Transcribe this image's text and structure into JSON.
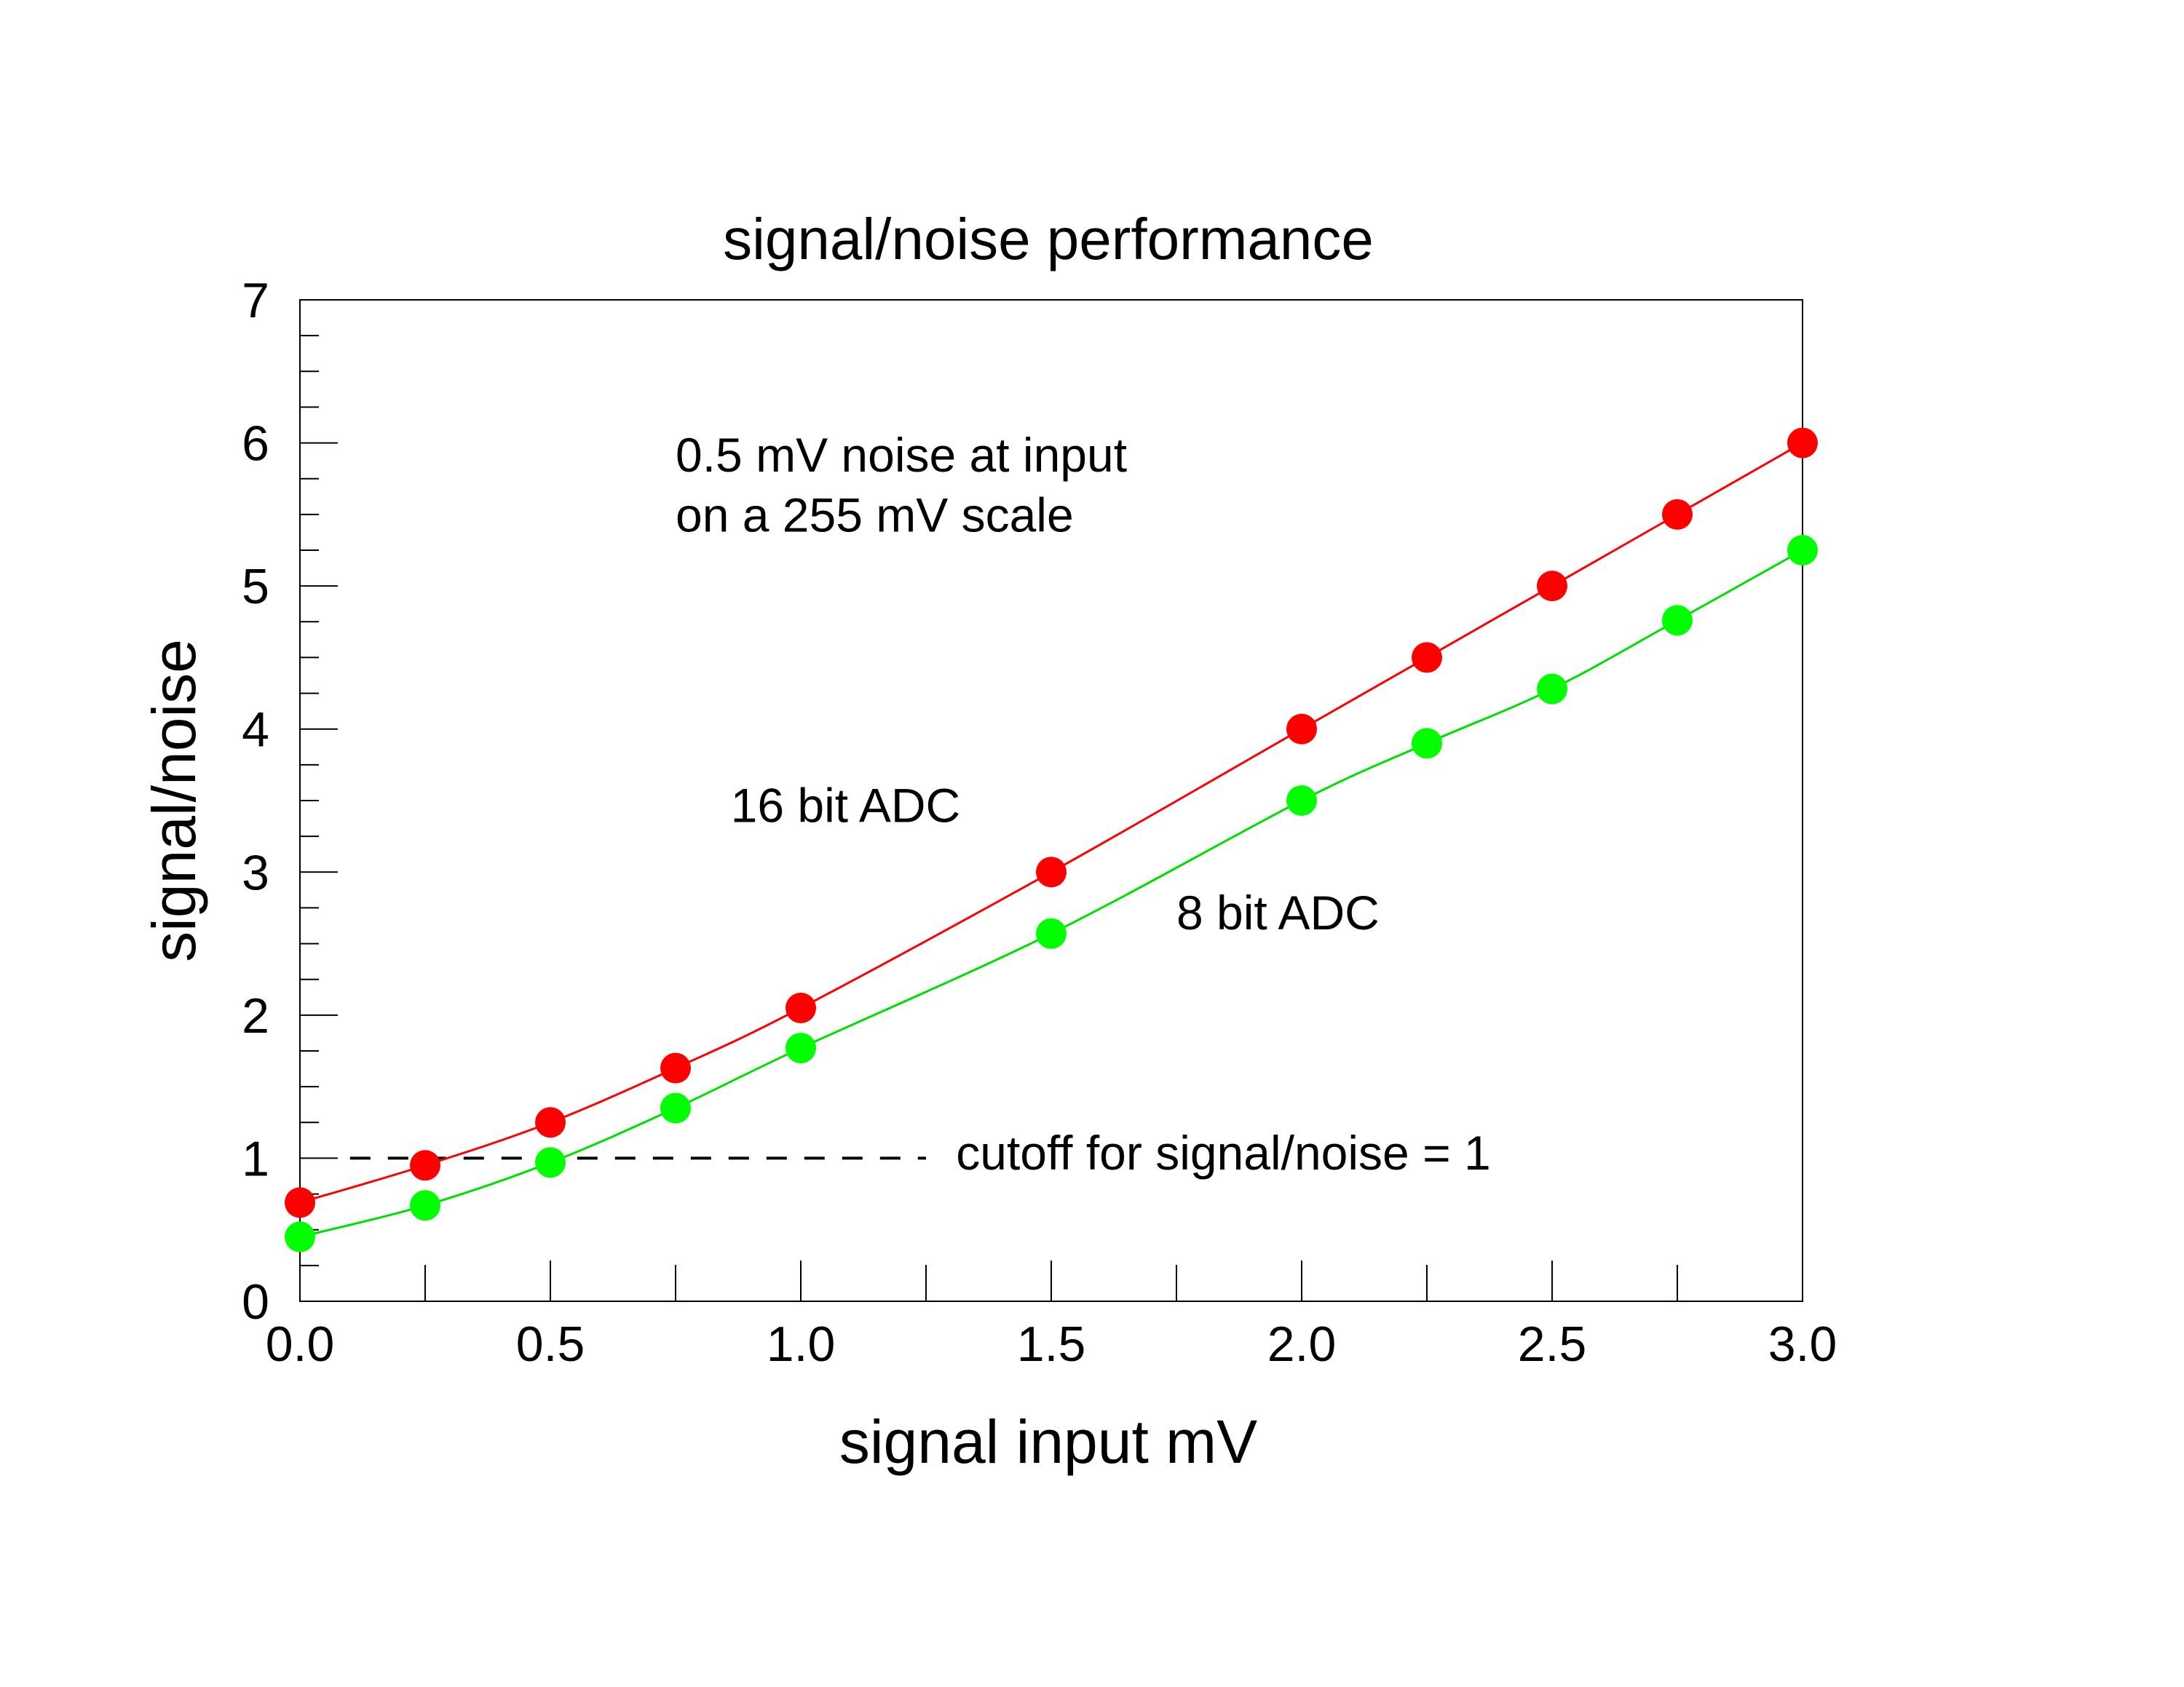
{
  "chart_data": {
    "type": "line",
    "title": "signal/noise performance",
    "xlabel": "signal input mV",
    "ylabel": "signal/noise",
    "xlim": [
      0,
      3
    ],
    "ylim": [
      0,
      7
    ],
    "x_ticks": [
      0,
      0.5,
      1,
      1.5,
      2,
      2.5,
      3
    ],
    "x_tick_labels": [
      "0.0",
      "0.5",
      "1.0",
      "1.5",
      "2.0",
      "2.5",
      "3.0"
    ],
    "y_ticks": [
      0,
      1,
      2,
      3,
      4,
      5,
      6,
      7
    ],
    "y_tick_labels": [
      "0",
      "1",
      "2",
      "3",
      "4",
      "5",
      "6",
      "7"
    ],
    "grid": false,
    "legend": "none",
    "x": [
      0,
      0.25,
      0.5,
      0.75,
      1.0,
      1.5,
      2.0,
      2.25,
      2.5,
      2.75,
      3.0
    ],
    "series": [
      {
        "name": "16 bit ADC",
        "color": "#ff0000",
        "marker_color": "#ff0000",
        "values": [
          0.69,
          0.95,
          1.25,
          1.63,
          2.05,
          3.0,
          4.0,
          4.5,
          5.0,
          5.5,
          6.0
        ]
      },
      {
        "name": "8 bit ADC",
        "color": "#00e000",
        "marker_color": "#00ff00",
        "values": [
          0.45,
          0.67,
          0.97,
          1.35,
          1.77,
          2.57,
          3.5,
          3.9,
          4.28,
          4.76,
          5.25
        ]
      }
    ],
    "reference_line": {
      "y": 1,
      "x_range": [
        0.1,
        1.25
      ],
      "style": "dashed",
      "color": "#000000"
    },
    "annotations": [
      {
        "text": "0.5 mV noise at input",
        "x": 0.75,
        "y": 5.8
      },
      {
        "text": "on a 255 mV scale",
        "x": 0.75,
        "y": 5.38
      },
      {
        "text": "16 bit ADC",
        "x": 0.86,
        "y": 3.35
      },
      {
        "text": "8 bit ADC",
        "x": 1.75,
        "y": 2.6
      },
      {
        "text": "cutoff for signal/noise = 1",
        "x": 1.31,
        "y": 0.92
      }
    ]
  }
}
